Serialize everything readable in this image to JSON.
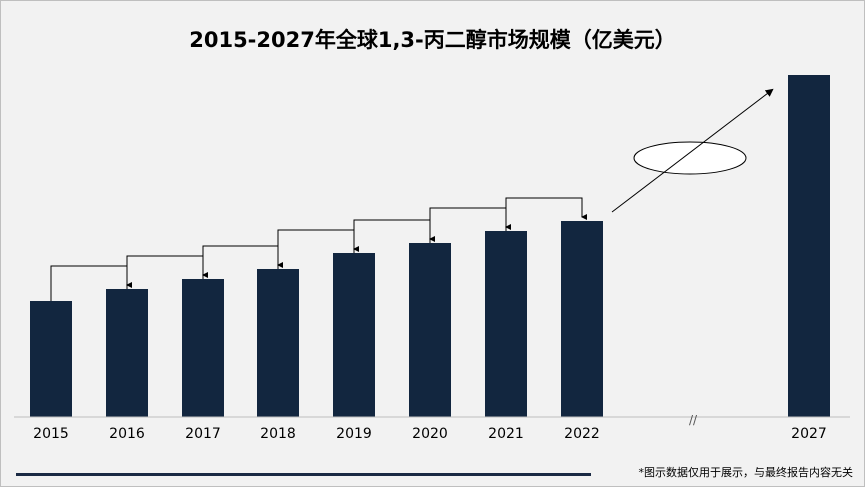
{
  "chart_data": {
    "type": "bar",
    "title": "2015-2027年全球1,3-丙二醇市场规模（亿美元）",
    "categories": [
      "2015",
      "2016",
      "2017",
      "2018",
      "2019",
      "2020",
      "2021",
      "2022",
      "2027"
    ],
    "values": [
      29.0,
      32.0,
      34.5,
      37.0,
      41.0,
      43.5,
      46.5,
      49.0,
      85.5
    ],
    "ylim": [
      0,
      90
    ],
    "bar_color": "#12263f",
    "grid": false,
    "axis_break": "//",
    "annotation": "ellipse callout with arrow toward 2027 (no text)"
  },
  "footnote": "*图示数据仅用于展示，与最终报告内容无关",
  "colors": {
    "background": "#f2f2f2",
    "bar": "#12263f",
    "footer_line": "#1b2a44"
  }
}
